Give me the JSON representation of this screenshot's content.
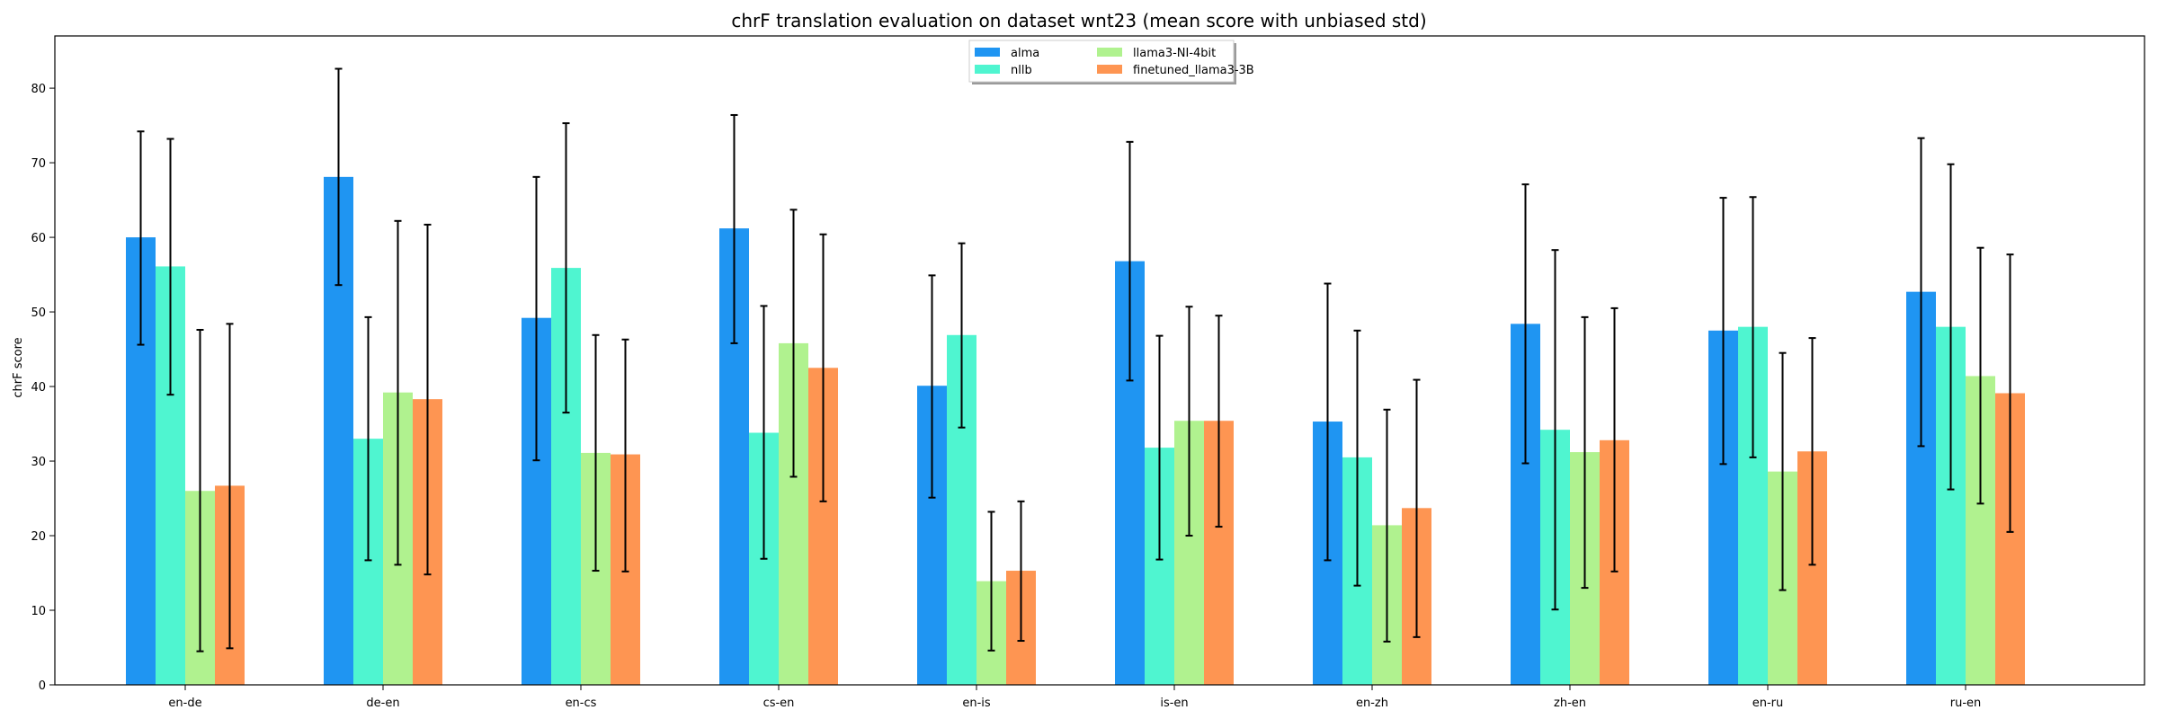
{
  "chart_data": {
    "type": "bar",
    "title": "chrF translation evaluation on dataset wnt23 (mean score with unbiased std)",
    "xlabel": "",
    "ylabel": "chrF score",
    "ylim": [
      0,
      87
    ],
    "yticks": [
      0,
      10,
      20,
      30,
      40,
      50,
      60,
      70,
      80
    ],
    "grid": false,
    "legend_position": "top-center",
    "categories": [
      "en-de",
      "de-en",
      "en-cs",
      "cs-en",
      "en-is",
      "is-en",
      "en-zh",
      "zh-en",
      "en-ru",
      "ru-en"
    ],
    "series": [
      {
        "name": "alma",
        "color": "#1f95f2",
        "values": [
          60.0,
          68.1,
          49.2,
          61.2,
          40.1,
          56.8,
          35.3,
          48.4,
          47.5,
          52.7
        ],
        "err_low": [
          45.6,
          53.6,
          30.1,
          45.8,
          25.1,
          40.8,
          16.7,
          29.7,
          29.6,
          32.0
        ],
        "err_high": [
          74.2,
          82.6,
          68.1,
          76.4,
          54.9,
          72.8,
          53.8,
          67.1,
          65.3,
          73.3
        ]
      },
      {
        "name": "nllb",
        "color": "#4ff5d0",
        "values": [
          56.1,
          33.0,
          55.9,
          33.8,
          46.9,
          31.8,
          30.5,
          34.2,
          48.0,
          48.0
        ],
        "err_low": [
          38.9,
          16.7,
          36.5,
          16.9,
          34.5,
          16.8,
          13.3,
          10.1,
          30.5,
          26.2
        ],
        "err_high": [
          73.2,
          49.3,
          75.3,
          50.8,
          59.2,
          46.8,
          47.5,
          58.3,
          65.4,
          69.8
        ]
      },
      {
        "name": "llama3-NI-4bit",
        "color": "#b0f28f",
        "values": [
          26.0,
          39.2,
          31.1,
          45.8,
          13.9,
          35.4,
          21.4,
          31.2,
          28.6,
          41.4
        ],
        "err_low": [
          4.5,
          16.1,
          15.3,
          27.9,
          4.6,
          20.0,
          5.8,
          13.0,
          12.7,
          24.3
        ],
        "err_high": [
          47.6,
          62.2,
          46.9,
          63.7,
          23.2,
          50.7,
          36.9,
          49.3,
          44.5,
          58.6
        ]
      },
      {
        "name": "finetuned_llama3-3B",
        "color": "#fe9552",
        "values": [
          26.7,
          38.3,
          30.9,
          42.5,
          15.3,
          35.4,
          23.7,
          32.8,
          31.3,
          39.1
        ],
        "err_low": [
          4.9,
          14.8,
          15.2,
          24.6,
          5.9,
          21.2,
          6.4,
          15.2,
          16.1,
          20.5
        ],
        "err_high": [
          48.4,
          61.7,
          46.3,
          60.4,
          24.6,
          49.5,
          40.9,
          50.5,
          46.5,
          57.7
        ]
      }
    ]
  }
}
